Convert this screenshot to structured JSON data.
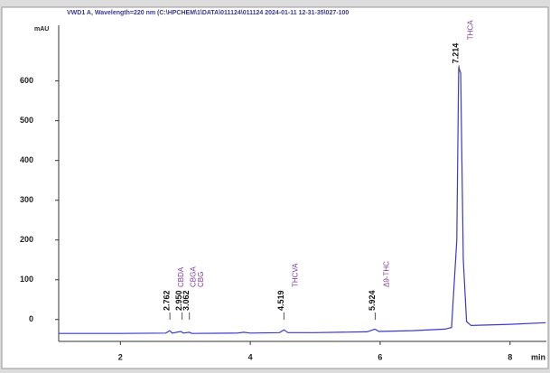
{
  "chart_data": {
    "type": "line",
    "title": "VWD1 A, Wavelength=220 nm (C:\\HPCHEM\\1\\DATA\\011124\\011124 2024-01-11 12-31-35\\027-100",
    "y_unit": "mAU",
    "x_unit": "min",
    "x": [
      1.05,
      2.0,
      2.7,
      2.76,
      2.8,
      2.93,
      2.97,
      3.06,
      3.1,
      3.8,
      3.9,
      4.0,
      4.45,
      4.52,
      4.58,
      5.0,
      5.8,
      5.92,
      5.98,
      6.5,
      7.0,
      7.1,
      7.18,
      7.21,
      7.24,
      7.28,
      7.33,
      7.4,
      8.0,
      8.55
    ],
    "values": [
      -35,
      -35,
      -34,
      -28,
      -34,
      -30,
      -34,
      -32,
      -35,
      -34,
      -32,
      -34,
      -33,
      -26,
      -33,
      -33,
      -31,
      -24,
      -30,
      -28,
      -24,
      -20,
      200,
      635,
      620,
      150,
      -5,
      -15,
      -12,
      -8
    ],
    "color": "#3a3ad0",
    "xlim": [
      1.05,
      8.56
    ],
    "ylim": [
      -55,
      740
    ],
    "xticks": [
      2,
      4,
      6,
      8
    ],
    "yticks": [
      0,
      100,
      200,
      300,
      400,
      500,
      600
    ],
    "peaks": [
      {
        "x": 2.762,
        "label": "2.762",
        "name": "CBDA"
      },
      {
        "x": 2.95,
        "label": "2.950",
        "name": "CBGA"
      },
      {
        "x": 3.062,
        "label": "3.062",
        "name": "CBG"
      },
      {
        "x": 4.519,
        "label": "4.519",
        "name": "THCVA"
      },
      {
        "x": 5.924,
        "label": "5.924",
        "name": "Δ9-THC"
      },
      {
        "x": 7.214,
        "label": "7.214",
        "name": "THCA"
      }
    ]
  }
}
